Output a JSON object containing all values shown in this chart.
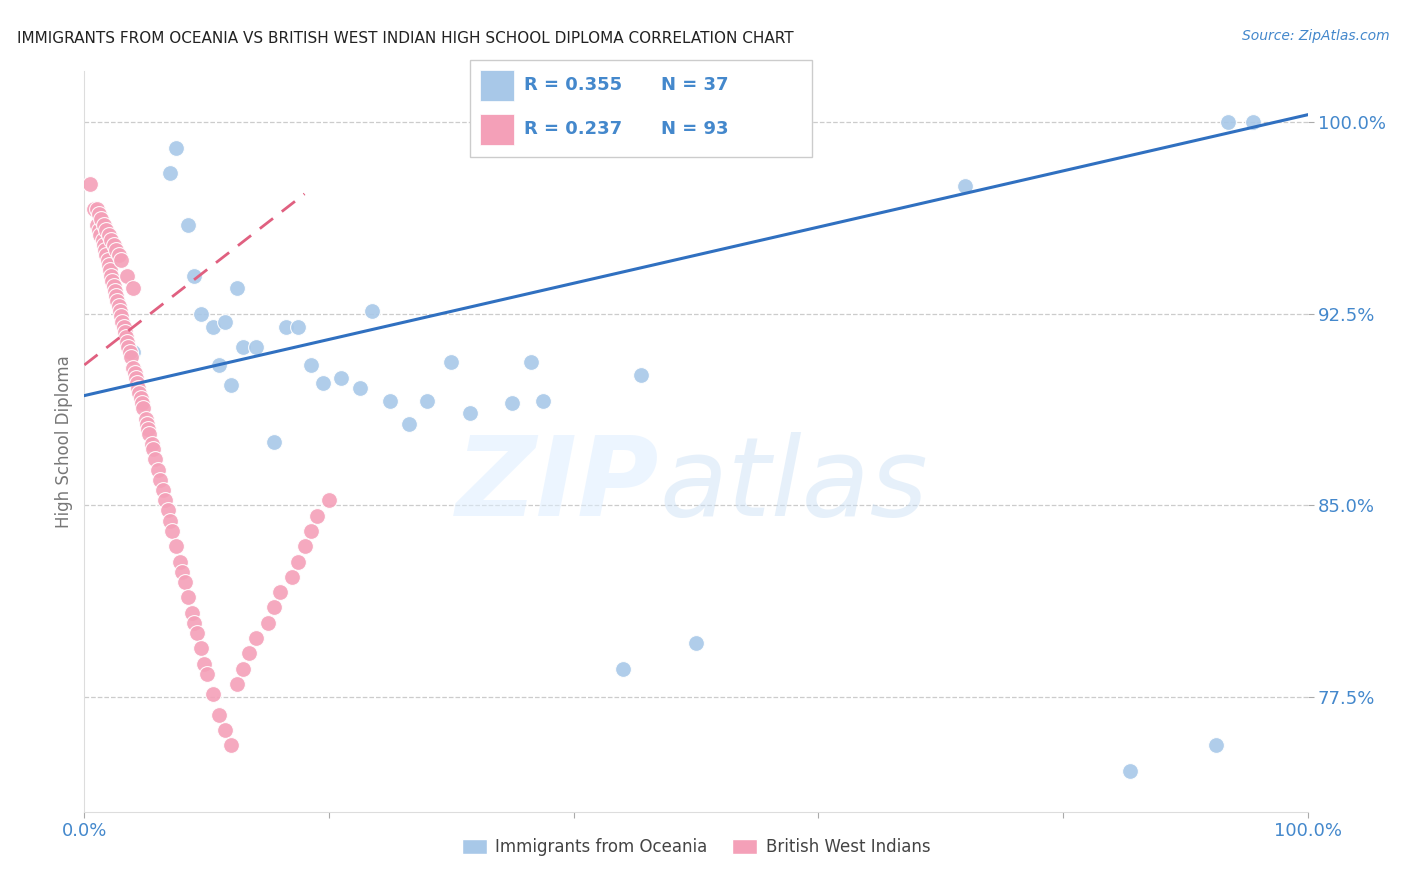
{
  "title": "IMMIGRANTS FROM OCEANIA VS BRITISH WEST INDIAN HIGH SCHOOL DIPLOMA CORRELATION CHART",
  "source": "Source: ZipAtlas.com",
  "ylabel": "High School Diploma",
  "ytick_vals": [
    0.775,
    0.85,
    0.925,
    1.0
  ],
  "ytick_labels": [
    "77.5%",
    "85.0%",
    "92.5%",
    "100.0%"
  ],
  "xlim": [
    0.0,
    1.0
  ],
  "ylim": [
    0.73,
    1.02
  ],
  "color_blue": "#a8c8e8",
  "color_pink": "#f4a0b8",
  "color_line_blue": "#3070c0",
  "color_line_pink": "#e06080",
  "color_axis": "#4488cc",
  "color_grid": "#cccccc",
  "legend_r1": "R = 0.355",
  "legend_n1": "N = 37",
  "legend_r2": "R = 0.237",
  "legend_n2": "N = 93",
  "blue_trend_x": [
    0.0,
    1.0
  ],
  "blue_trend_y": [
    0.893,
    1.003
  ],
  "pink_trend_x": [
    0.0,
    0.18
  ],
  "pink_trend_y": [
    0.905,
    0.972
  ],
  "blue_x": [
    0.04,
    0.07,
    0.075,
    0.085,
    0.09,
    0.095,
    0.105,
    0.11,
    0.115,
    0.12,
    0.125,
    0.13,
    0.14,
    0.155,
    0.165,
    0.175,
    0.185,
    0.195,
    0.21,
    0.225,
    0.235,
    0.25,
    0.265,
    0.28,
    0.3,
    0.315,
    0.35,
    0.365,
    0.375,
    0.44,
    0.455,
    0.5,
    0.72,
    0.855,
    0.925,
    0.935,
    0.955
  ],
  "blue_y": [
    0.91,
    0.98,
    0.99,
    0.96,
    0.94,
    0.925,
    0.92,
    0.905,
    0.922,
    0.897,
    0.935,
    0.912,
    0.912,
    0.875,
    0.92,
    0.92,
    0.905,
    0.898,
    0.9,
    0.896,
    0.926,
    0.891,
    0.882,
    0.891,
    0.906,
    0.886,
    0.89,
    0.906,
    0.891,
    0.786,
    0.901,
    0.796,
    0.975,
    0.746,
    0.756,
    1.0,
    1.0
  ],
  "pink_x": [
    0.005,
    0.008,
    0.01,
    0.012,
    0.013,
    0.015,
    0.016,
    0.017,
    0.018,
    0.019,
    0.02,
    0.021,
    0.022,
    0.023,
    0.024,
    0.025,
    0.026,
    0.027,
    0.028,
    0.029,
    0.03,
    0.031,
    0.032,
    0.033,
    0.034,
    0.035,
    0.036,
    0.037,
    0.038,
    0.04,
    0.041,
    0.042,
    0.043,
    0.044,
    0.045,
    0.046,
    0.047,
    0.048,
    0.05,
    0.051,
    0.052,
    0.053,
    0.055,
    0.056,
    0.058,
    0.06,
    0.062,
    0.064,
    0.066,
    0.068,
    0.07,
    0.072,
    0.075,
    0.078,
    0.08,
    0.082,
    0.085,
    0.088,
    0.09,
    0.092,
    0.095,
    0.098,
    0.1,
    0.105,
    0.11,
    0.115,
    0.12,
    0.125,
    0.13,
    0.135,
    0.14,
    0.15,
    0.155,
    0.16,
    0.17,
    0.175,
    0.18,
    0.185,
    0.19,
    0.2,
    0.01,
    0.012,
    0.014,
    0.016,
    0.018,
    0.02,
    0.022,
    0.024,
    0.026,
    0.028,
    0.03,
    0.035,
    0.04
  ],
  "pink_y": [
    0.976,
    0.966,
    0.96,
    0.958,
    0.956,
    0.954,
    0.952,
    0.95,
    0.948,
    0.946,
    0.944,
    0.942,
    0.94,
    0.938,
    0.936,
    0.934,
    0.932,
    0.93,
    0.928,
    0.926,
    0.924,
    0.922,
    0.92,
    0.918,
    0.916,
    0.914,
    0.912,
    0.91,
    0.908,
    0.904,
    0.902,
    0.9,
    0.898,
    0.896,
    0.894,
    0.892,
    0.89,
    0.888,
    0.884,
    0.882,
    0.88,
    0.878,
    0.874,
    0.872,
    0.868,
    0.864,
    0.86,
    0.856,
    0.852,
    0.848,
    0.844,
    0.84,
    0.834,
    0.828,
    0.824,
    0.82,
    0.814,
    0.808,
    0.804,
    0.8,
    0.794,
    0.788,
    0.784,
    0.776,
    0.768,
    0.762,
    0.756,
    0.78,
    0.786,
    0.792,
    0.798,
    0.804,
    0.81,
    0.816,
    0.822,
    0.828,
    0.834,
    0.84,
    0.846,
    0.852,
    0.966,
    0.964,
    0.962,
    0.96,
    0.958,
    0.956,
    0.954,
    0.952,
    0.95,
    0.948,
    0.946,
    0.94,
    0.935
  ]
}
